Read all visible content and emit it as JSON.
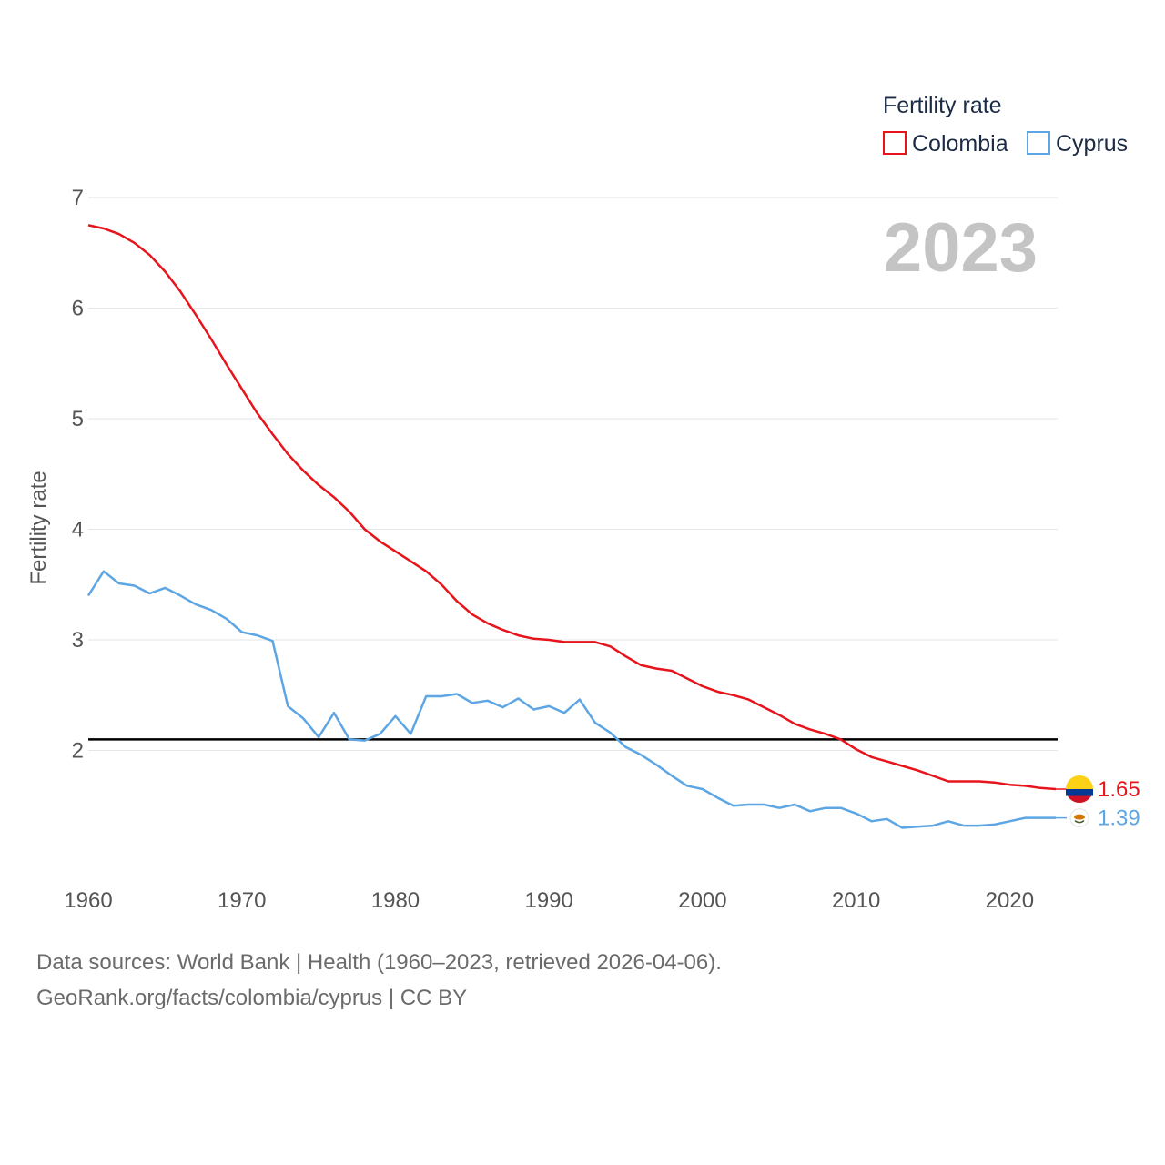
{
  "chart_data": {
    "type": "line",
    "title": "",
    "year_label": "2023",
    "legend_title": "Fertility rate",
    "ylabel": "Fertility rate",
    "xlabel": "",
    "xlim": [
      1960,
      2023
    ],
    "ylim": [
      1,
      7
    ],
    "yticks": [
      2,
      3,
      4,
      5,
      6,
      7
    ],
    "xticks": [
      1960,
      1970,
      1980,
      1990,
      2000,
      2010,
      2020
    ],
    "reference_line": 2.1,
    "x": [
      1960,
      1961,
      1962,
      1963,
      1964,
      1965,
      1966,
      1967,
      1968,
      1969,
      1970,
      1971,
      1972,
      1973,
      1974,
      1975,
      1976,
      1977,
      1978,
      1979,
      1980,
      1981,
      1982,
      1983,
      1984,
      1985,
      1986,
      1987,
      1988,
      1989,
      1990,
      1991,
      1992,
      1993,
      1994,
      1995,
      1996,
      1997,
      1998,
      1999,
      2000,
      2001,
      2002,
      2003,
      2004,
      2005,
      2006,
      2007,
      2008,
      2009,
      2010,
      2011,
      2012,
      2013,
      2014,
      2015,
      2016,
      2017,
      2018,
      2019,
      2020,
      2021,
      2022,
      2023
    ],
    "series": [
      {
        "name": "Colombia",
        "color": "#e8141b",
        "end_label": "1.65",
        "values": [
          6.75,
          6.72,
          6.67,
          6.59,
          6.48,
          6.33,
          6.15,
          5.94,
          5.72,
          5.49,
          5.27,
          5.05,
          4.86,
          4.68,
          4.53,
          4.4,
          4.29,
          4.16,
          4.0,
          3.89,
          3.8,
          3.71,
          3.62,
          3.5,
          3.35,
          3.23,
          3.15,
          3.09,
          3.04,
          3.01,
          3.0,
          2.98,
          2.98,
          2.98,
          2.94,
          2.85,
          2.77,
          2.74,
          2.72,
          2.65,
          2.58,
          2.53,
          2.5,
          2.46,
          2.39,
          2.32,
          2.24,
          2.19,
          2.15,
          2.1,
          2.01,
          1.94,
          1.9,
          1.86,
          1.82,
          1.77,
          1.72,
          1.72,
          1.72,
          1.71,
          1.69,
          1.68,
          1.66,
          1.65
        ]
      },
      {
        "name": "Cyprus",
        "color": "#5ea6e3",
        "end_label": "1.39",
        "values": [
          3.4,
          3.62,
          3.51,
          3.49,
          3.42,
          3.47,
          3.4,
          3.32,
          3.27,
          3.19,
          3.07,
          3.04,
          2.99,
          2.4,
          2.29,
          2.12,
          2.34,
          2.1,
          2.09,
          2.15,
          2.31,
          2.15,
          2.49,
          2.49,
          2.51,
          2.43,
          2.45,
          2.39,
          2.47,
          2.37,
          2.4,
          2.34,
          2.46,
          2.25,
          2.16,
          2.03,
          1.96,
          1.87,
          1.77,
          1.68,
          1.65,
          1.57,
          1.5,
          1.51,
          1.51,
          1.48,
          1.51,
          1.45,
          1.48,
          1.48,
          1.43,
          1.36,
          1.38,
          1.3,
          1.31,
          1.32,
          1.36,
          1.32,
          1.32,
          1.33,
          1.36,
          1.39,
          1.39,
          1.39
        ]
      }
    ]
  },
  "footer": {
    "line1": "Data sources: World Bank | Health (1960–2023, retrieved 2026-04-06).",
    "line2": "GeoRank.org/facts/colombia/cyprus | CC BY"
  }
}
